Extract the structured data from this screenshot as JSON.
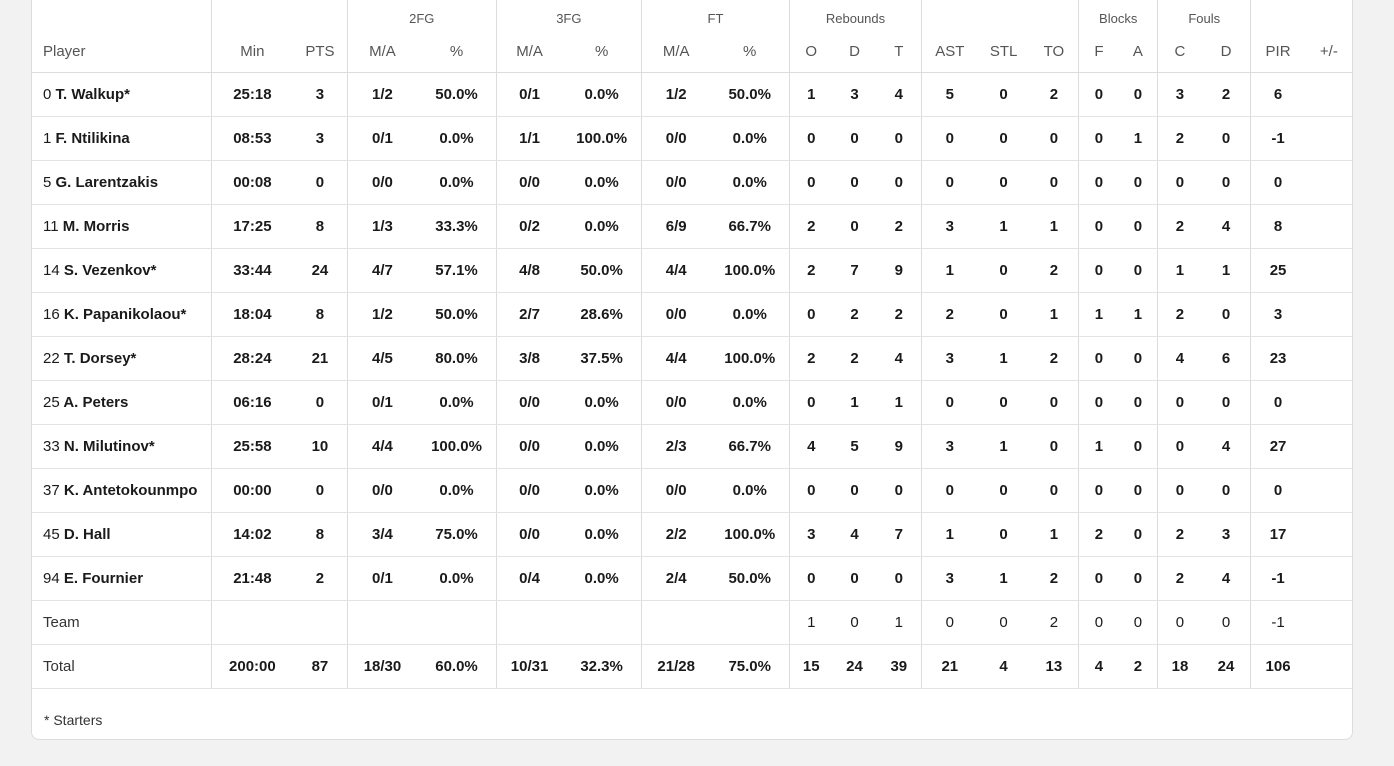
{
  "headers": {
    "groups": {
      "fg2": "2FG",
      "fg3": "3FG",
      "ft": "FT",
      "rebounds": "Rebounds",
      "blocks": "Blocks",
      "fouls": "Fouls"
    },
    "player": "Player",
    "min": "Min",
    "pts": "PTS",
    "ma": "M/A",
    "pct": "%",
    "o": "O",
    "d": "D",
    "t": "T",
    "ast": "AST",
    "stl": "STL",
    "to": "TO",
    "bf": "F",
    "ba": "A",
    "fc": "C",
    "fd": "D",
    "pir": "PIR",
    "pm": "+/-"
  },
  "players": [
    {
      "num": "0",
      "name": "T. Walkup*",
      "min": "25:18",
      "pts": "3",
      "fg2": "1/2",
      "fg2p": "50.0%",
      "fg3": "0/1",
      "fg3p": "0.0%",
      "ft": "1/2",
      "ftp": "50.0%",
      "o": "1",
      "d": "3",
      "t": "4",
      "ast": "5",
      "stl": "0",
      "to": "2",
      "bf": "0",
      "ba": "0",
      "fc": "3",
      "fd": "2",
      "pir": "6",
      "pm": ""
    },
    {
      "num": "1",
      "name": "F. Ntilikina",
      "min": "08:53",
      "pts": "3",
      "fg2": "0/1",
      "fg2p": "0.0%",
      "fg3": "1/1",
      "fg3p": "100.0%",
      "ft": "0/0",
      "ftp": "0.0%",
      "o": "0",
      "d": "0",
      "t": "0",
      "ast": "0",
      "stl": "0",
      "to": "0",
      "bf": "0",
      "ba": "1",
      "fc": "2",
      "fd": "0",
      "pir": "-1",
      "pm": ""
    },
    {
      "num": "5",
      "name": "G. Larentzakis",
      "min": "00:08",
      "pts": "0",
      "fg2": "0/0",
      "fg2p": "0.0%",
      "fg3": "0/0",
      "fg3p": "0.0%",
      "ft": "0/0",
      "ftp": "0.0%",
      "o": "0",
      "d": "0",
      "t": "0",
      "ast": "0",
      "stl": "0",
      "to": "0",
      "bf": "0",
      "ba": "0",
      "fc": "0",
      "fd": "0",
      "pir": "0",
      "pm": ""
    },
    {
      "num": "11",
      "name": "M. Morris",
      "min": "17:25",
      "pts": "8",
      "fg2": "1/3",
      "fg2p": "33.3%",
      "fg3": "0/2",
      "fg3p": "0.0%",
      "ft": "6/9",
      "ftp": "66.7%",
      "o": "2",
      "d": "0",
      "t": "2",
      "ast": "3",
      "stl": "1",
      "to": "1",
      "bf": "0",
      "ba": "0",
      "fc": "2",
      "fd": "4",
      "pir": "8",
      "pm": ""
    },
    {
      "num": "14",
      "name": "S. Vezenkov*",
      "min": "33:44",
      "pts": "24",
      "fg2": "4/7",
      "fg2p": "57.1%",
      "fg3": "4/8",
      "fg3p": "50.0%",
      "ft": "4/4",
      "ftp": "100.0%",
      "o": "2",
      "d": "7",
      "t": "9",
      "ast": "1",
      "stl": "0",
      "to": "2",
      "bf": "0",
      "ba": "0",
      "fc": "1",
      "fd": "1",
      "pir": "25",
      "pm": ""
    },
    {
      "num": "16",
      "name": "K. Papanikolaou*",
      "min": "18:04",
      "pts": "8",
      "fg2": "1/2",
      "fg2p": "50.0%",
      "fg3": "2/7",
      "fg3p": "28.6%",
      "ft": "0/0",
      "ftp": "0.0%",
      "o": "0",
      "d": "2",
      "t": "2",
      "ast": "2",
      "stl": "0",
      "to": "1",
      "bf": "1",
      "ba": "1",
      "fc": "2",
      "fd": "0",
      "pir": "3",
      "pm": ""
    },
    {
      "num": "22",
      "name": "T. Dorsey*",
      "min": "28:24",
      "pts": "21",
      "fg2": "4/5",
      "fg2p": "80.0%",
      "fg3": "3/8",
      "fg3p": "37.5%",
      "ft": "4/4",
      "ftp": "100.0%",
      "o": "2",
      "d": "2",
      "t": "4",
      "ast": "3",
      "stl": "1",
      "to": "2",
      "bf": "0",
      "ba": "0",
      "fc": "4",
      "fd": "6",
      "pir": "23",
      "pm": ""
    },
    {
      "num": "25",
      "name": "A. Peters",
      "min": "06:16",
      "pts": "0",
      "fg2": "0/1",
      "fg2p": "0.0%",
      "fg3": "0/0",
      "fg3p": "0.0%",
      "ft": "0/0",
      "ftp": "0.0%",
      "o": "0",
      "d": "1",
      "t": "1",
      "ast": "0",
      "stl": "0",
      "to": "0",
      "bf": "0",
      "ba": "0",
      "fc": "0",
      "fd": "0",
      "pir": "0",
      "pm": ""
    },
    {
      "num": "33",
      "name": "N. Milutinov*",
      "min": "25:58",
      "pts": "10",
      "fg2": "4/4",
      "fg2p": "100.0%",
      "fg3": "0/0",
      "fg3p": "0.0%",
      "ft": "2/3",
      "ftp": "66.7%",
      "o": "4",
      "d": "5",
      "t": "9",
      "ast": "3",
      "stl": "1",
      "to": "0",
      "bf": "1",
      "ba": "0",
      "fc": "0",
      "fd": "4",
      "pir": "27",
      "pm": ""
    },
    {
      "num": "37",
      "name": "K. Antetokounmpo",
      "min": "00:00",
      "pts": "0",
      "fg2": "0/0",
      "fg2p": "0.0%",
      "fg3": "0/0",
      "fg3p": "0.0%",
      "ft": "0/0",
      "ftp": "0.0%",
      "o": "0",
      "d": "0",
      "t": "0",
      "ast": "0",
      "stl": "0",
      "to": "0",
      "bf": "0",
      "ba": "0",
      "fc": "0",
      "fd": "0",
      "pir": "0",
      "pm": ""
    },
    {
      "num": "45",
      "name": "D. Hall",
      "min": "14:02",
      "pts": "8",
      "fg2": "3/4",
      "fg2p": "75.0%",
      "fg3": "0/0",
      "fg3p": "0.0%",
      "ft": "2/2",
      "ftp": "100.0%",
      "o": "3",
      "d": "4",
      "t": "7",
      "ast": "1",
      "stl": "0",
      "to": "1",
      "bf": "2",
      "ba": "0",
      "fc": "2",
      "fd": "3",
      "pir": "17",
      "pm": ""
    },
    {
      "num": "94",
      "name": "E. Fournier",
      "min": "21:48",
      "pts": "2",
      "fg2": "0/1",
      "fg2p": "0.0%",
      "fg3": "0/4",
      "fg3p": "0.0%",
      "ft": "2/4",
      "ftp": "50.0%",
      "o": "0",
      "d": "0",
      "t": "0",
      "ast": "3",
      "stl": "1",
      "to": "2",
      "bf": "0",
      "ba": "0",
      "fc": "2",
      "fd": "4",
      "pir": "-1",
      "pm": ""
    }
  ],
  "team": {
    "label": "Team",
    "min": "",
    "pts": "",
    "fg2": "",
    "fg2p": "",
    "fg3": "",
    "fg3p": "",
    "ft": "",
    "ftp": "",
    "o": "1",
    "d": "0",
    "t": "1",
    "ast": "0",
    "stl": "0",
    "to": "2",
    "bf": "0",
    "ba": "0",
    "fc": "0",
    "fd": "0",
    "pir": "-1",
    "pm": ""
  },
  "total": {
    "label": "Total",
    "min": "200:00",
    "pts": "87",
    "fg2": "18/30",
    "fg2p": "60.0%",
    "fg3": "10/31",
    "fg3p": "32.3%",
    "ft": "21/28",
    "ftp": "75.0%",
    "o": "15",
    "d": "24",
    "t": "39",
    "ast": "21",
    "stl": "4",
    "to": "13",
    "bf": "4",
    "ba": "2",
    "fc": "18",
    "fd": "24",
    "pir": "106",
    "pm": ""
  },
  "footnote": "* Starters"
}
